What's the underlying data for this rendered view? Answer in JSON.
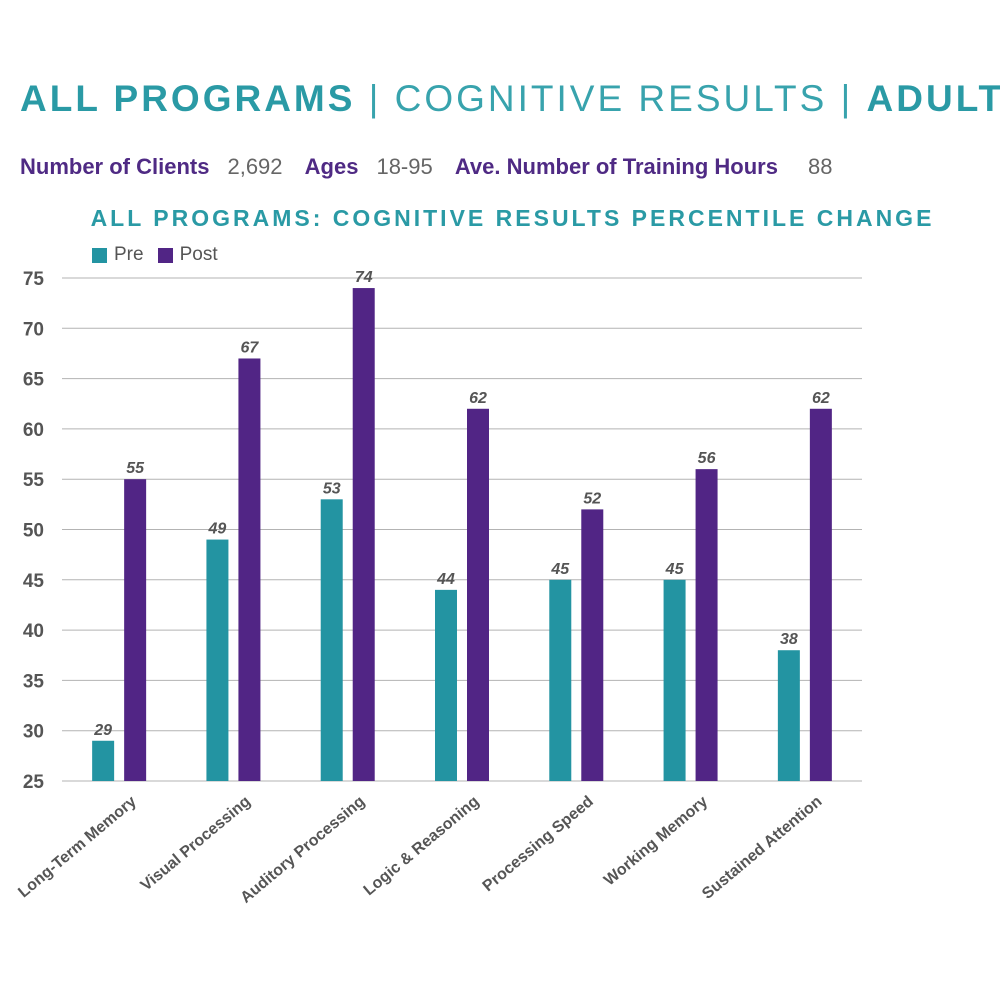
{
  "header": {
    "part1": "ALL PROGRAMS",
    "sep1": "|",
    "part2": "COGNITIVE RESULTS",
    "sep2": "|",
    "part3": "ADULTS"
  },
  "stats": {
    "clients_label": "Number of Clients",
    "clients_value": "2,692",
    "ages_label": "Ages",
    "ages_value": "18-95",
    "hours_label": "Ave. Number of Training Hours",
    "hours_value": "88"
  },
  "colors": {
    "pre": "#2394a2",
    "post": "#512585",
    "grid": "#b3b3b3",
    "label": "#555555"
  },
  "chart_data": {
    "type": "bar",
    "title": "ALL PROGRAMS: COGNITIVE RESULTS PERCENTILE CHANGE",
    "categories": [
      "Long-Term Memory",
      "Visual Processing",
      "Auditory Processing",
      "Logic & Reasoning",
      "Processing Speed",
      "Working Memory",
      "Sustained Attention"
    ],
    "series": [
      {
        "name": "Pre",
        "values": [
          29,
          49,
          53,
          44,
          45,
          45,
          38
        ]
      },
      {
        "name": "Post",
        "values": [
          55,
          67,
          74,
          62,
          52,
          56,
          62
        ]
      }
    ],
    "ylim": [
      25,
      75
    ],
    "yticks": [
      25,
      30,
      35,
      40,
      45,
      50,
      55,
      60,
      65,
      70,
      75
    ],
    "xlabel": "",
    "ylabel": "",
    "legend": "top-left",
    "grid": true
  }
}
